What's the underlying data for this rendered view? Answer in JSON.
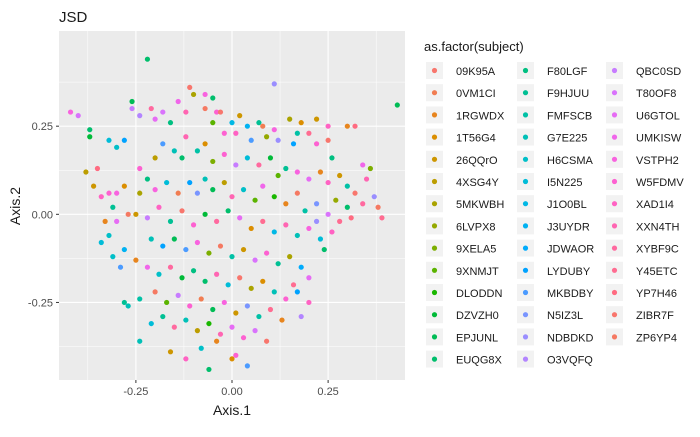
{
  "chart_data": {
    "type": "scatter",
    "title": "JSD",
    "xlabel": "Axis.1",
    "ylabel": "Axis.2",
    "xlim": [
      -0.45,
      0.45
    ],
    "ylim": [
      -0.47,
      0.52
    ],
    "xticks": [
      -0.25,
      0.0,
      0.25
    ],
    "xtick_labels": [
      "-0.25",
      "0.00",
      "0.25"
    ],
    "yticks": [
      -0.25,
      0.0,
      0.25
    ],
    "ytick_labels": [
      "-0.25",
      "0.00",
      "0.25"
    ],
    "grid": true,
    "legend_title": "as.factor(subject)",
    "legend_position": "right",
    "subjects": [
      "09K95A",
      "0VM1CI",
      "1RGWDX",
      "1T56G4",
      "26QQrO",
      "4XSG4Y",
      "5MKWBH",
      "6LVPX8",
      "9XELA5",
      "9XNMJT",
      "DLODDN",
      "DZVZH0",
      "EPJUNL",
      "EUQG8X",
      "F80LGF",
      "F9HJUU",
      "FMFSCB",
      "G7E225",
      "H6CSMA",
      "I5N225",
      "J1O0BL",
      "J3UYDR",
      "JDWAOR",
      "LYDUBY",
      "MKBDBY",
      "N5IZ3L",
      "NDBDKD",
      "O3VQFQ",
      "QBC0SD",
      "T80OF8",
      "U6GTOL",
      "UMKISW",
      "VSTPH2",
      "W5FDMV",
      "XAD1I4",
      "XXN4TH",
      "XYBF9C",
      "Y45ETC",
      "YP7H46",
      "ZIBR7F",
      "ZP6YP4"
    ],
    "colors": [
      "#F8766D",
      "#F17D52",
      "#E7851E",
      "#DB8E00",
      "#CD9600",
      "#BC9D00",
      "#AAA300",
      "#95A900",
      "#7CAE00",
      "#5BB300",
      "#1AB700",
      "#00BA38",
      "#00BC55",
      "#00BE6C",
      "#00BF81",
      "#00C094",
      "#00C1A6",
      "#00C0B7",
      "#00BFC8",
      "#00BCD8",
      "#00B8E5",
      "#00B2F2",
      "#00ABFC",
      "#00A2FF",
      "#4B9BFF",
      "#7995FF",
      "#9A8EFF",
      "#B385FF",
      "#C77CFF",
      "#D973FC",
      "#E66CF4",
      "#F066EA",
      "#F863DF",
      "#FD61D1",
      "#FF62C3",
      "#FF65B2",
      "#FF699F",
      "#FF6C91",
      "#FF6B81",
      "#F8766D",
      "#F57962"
    ],
    "points": [
      {
        "x": -0.22,
        "y": 0.44,
        "s": "EUQG8X"
      },
      {
        "x": 0.11,
        "y": 0.37,
        "s": "NDBDKD"
      },
      {
        "x": 0.43,
        "y": 0.31,
        "s": "EPJUNL"
      },
      {
        "x": -0.42,
        "y": 0.29,
        "s": "VSTPH2"
      },
      {
        "x": -0.4,
        "y": 0.28,
        "s": "T80OF8"
      },
      {
        "x": -0.37,
        "y": 0.24,
        "s": "EUQG8X"
      },
      {
        "x": -0.37,
        "y": 0.22,
        "s": "DZVZH0"
      },
      {
        "x": -0.32,
        "y": 0.21,
        "s": "I5N225"
      },
      {
        "x": -0.28,
        "y": 0.21,
        "s": "LYDUBY"
      },
      {
        "x": -0.3,
        "y": 0.19,
        "s": "H6CSMA"
      },
      {
        "x": -0.38,
        "y": 0.12,
        "s": "4XSG4Y"
      },
      {
        "x": -0.35,
        "y": 0.13,
        "s": "YP7H46"
      },
      {
        "x": -0.36,
        "y": 0.08,
        "s": "26QQrO"
      },
      {
        "x": -0.34,
        "y": 0.05,
        "s": "XAD1I4"
      },
      {
        "x": -0.32,
        "y": 0.06,
        "s": "W5FDMV"
      },
      {
        "x": -0.3,
        "y": 0.06,
        "s": "VSTPH2"
      },
      {
        "x": -0.28,
        "y": 0.08,
        "s": "1T56G4"
      },
      {
        "x": -0.31,
        "y": 0.02,
        "s": "F9HJUU"
      },
      {
        "x": -0.33,
        "y": -0.02,
        "s": "1RGWDX"
      },
      {
        "x": -0.3,
        "y": -0.02,
        "s": "U6GTOL"
      },
      {
        "x": -0.27,
        "y": 0.0,
        "s": "ZP6YP4"
      },
      {
        "x": -0.32,
        "y": -0.06,
        "s": "H6CSMA"
      },
      {
        "x": -0.34,
        "y": -0.08,
        "s": "I5N225"
      },
      {
        "x": -0.28,
        "y": -0.1,
        "s": "J3UYDR"
      },
      {
        "x": -0.31,
        "y": -0.12,
        "s": "H6CSMA"
      },
      {
        "x": -0.29,
        "y": -0.15,
        "s": "MKBDBY"
      },
      {
        "x": -0.28,
        "y": -0.25,
        "s": "F9HJUU"
      },
      {
        "x": -0.27,
        "y": -0.26,
        "s": "G7E225"
      },
      {
        "x": -0.24,
        "y": -0.24,
        "s": "FMFSCB"
      },
      {
        "x": -0.26,
        "y": 0.32,
        "s": "EPJUNL"
      },
      {
        "x": -0.26,
        "y": 0.3,
        "s": "QBC0SD"
      },
      {
        "x": -0.24,
        "y": 0.28,
        "s": "O3VQFQ"
      },
      {
        "x": -0.21,
        "y": 0.3,
        "s": "XYBF9C"
      },
      {
        "x": -0.18,
        "y": 0.29,
        "s": "T80OF8"
      },
      {
        "x": -0.2,
        "y": 0.27,
        "s": "U6GTOL"
      },
      {
        "x": -0.16,
        "y": 0.26,
        "s": "F80LGF"
      },
      {
        "x": -0.14,
        "y": 0.32,
        "s": "UMKISW"
      },
      {
        "x": -0.12,
        "y": 0.29,
        "s": "XXN4TH"
      },
      {
        "x": -0.1,
        "y": 0.34,
        "s": "5MKWBH"
      },
      {
        "x": -0.11,
        "y": 0.36,
        "s": "09K95A"
      },
      {
        "x": -0.07,
        "y": 0.34,
        "s": "VSTPH2"
      },
      {
        "x": -0.05,
        "y": 0.33,
        "s": "EUQG8X"
      },
      {
        "x": -0.07,
        "y": 0.3,
        "s": "ZP6YP4"
      },
      {
        "x": -0.04,
        "y": 0.29,
        "s": "W5FDMV"
      },
      {
        "x": -0.05,
        "y": 0.26,
        "s": "9XNMJT"
      },
      {
        "x": -0.03,
        "y": 0.29,
        "s": "ZIBR7F"
      },
      {
        "x": 0.0,
        "y": 0.26,
        "s": "J1O0BL"
      },
      {
        "x": 0.02,
        "y": 0.28,
        "s": "26QQrO"
      },
      {
        "x": -0.02,
        "y": 0.23,
        "s": "W5FDMV"
      },
      {
        "x": 0.01,
        "y": 0.23,
        "s": "XAD1I4"
      },
      {
        "x": 0.04,
        "y": 0.25,
        "s": "J3UYDR"
      },
      {
        "x": 0.07,
        "y": 0.26,
        "s": "F9HJUU"
      },
      {
        "x": 0.08,
        "y": 0.25,
        "s": "0VM1CI"
      },
      {
        "x": 0.05,
        "y": 0.21,
        "s": "MKBDBY"
      },
      {
        "x": 0.09,
        "y": 0.22,
        "s": "6LVPX8"
      },
      {
        "x": 0.11,
        "y": 0.24,
        "s": "VSTPH2"
      },
      {
        "x": 0.12,
        "y": 0.21,
        "s": "NDBDKD"
      },
      {
        "x": 0.15,
        "y": 0.27,
        "s": "5MKWBH"
      },
      {
        "x": 0.16,
        "y": 0.2,
        "s": "LYDUBY"
      },
      {
        "x": 0.17,
        "y": 0.23,
        "s": "FMFSCB"
      },
      {
        "x": 0.2,
        "y": 0.23,
        "s": "Y45ETC"
      },
      {
        "x": 0.18,
        "y": 0.26,
        "s": "1T56G4"
      },
      {
        "x": 0.22,
        "y": 0.27,
        "s": "26QQrO"
      },
      {
        "x": 0.25,
        "y": 0.25,
        "s": "XAD1I4"
      },
      {
        "x": 0.25,
        "y": 0.21,
        "s": "ZIBR7F"
      },
      {
        "x": 0.26,
        "y": 0.16,
        "s": "F80LGF"
      },
      {
        "x": 0.3,
        "y": 0.25,
        "s": "1RGWDX"
      },
      {
        "x": 0.32,
        "y": 0.25,
        "s": "YP7H46"
      },
      {
        "x": 0.22,
        "y": 0.2,
        "s": "W5FDMV"
      },
      {
        "x": 0.34,
        "y": 0.14,
        "s": "UMKISW"
      },
      {
        "x": 0.36,
        "y": 0.13,
        "s": "9XELA5"
      },
      {
        "x": 0.35,
        "y": 0.1,
        "s": "XXN4TH"
      },
      {
        "x": 0.37,
        "y": 0.05,
        "s": "NDBDKD"
      },
      {
        "x": 0.38,
        "y": 0.02,
        "s": "ZP6YP4"
      },
      {
        "x": 0.39,
        "y": -0.01,
        "s": "Y45ETC"
      },
      {
        "x": -0.12,
        "y": 0.22,
        "s": "XXN4TH"
      },
      {
        "x": -0.18,
        "y": 0.2,
        "s": "MKBDBY"
      },
      {
        "x": -0.15,
        "y": 0.18,
        "s": "G7E225"
      },
      {
        "x": -0.2,
        "y": 0.16,
        "s": "4XSG4Y"
      },
      {
        "x": -0.13,
        "y": 0.16,
        "s": "EUQG8X"
      },
      {
        "x": -0.09,
        "y": 0.18,
        "s": "FMFSCB"
      },
      {
        "x": -0.07,
        "y": 0.2,
        "s": "1T56G4"
      },
      {
        "x": -0.05,
        "y": 0.15,
        "s": "9XELA5"
      },
      {
        "x": -0.02,
        "y": 0.17,
        "s": "W5FDMV"
      },
      {
        "x": 0.01,
        "y": 0.14,
        "s": "QBC0SD"
      },
      {
        "x": 0.04,
        "y": 0.16,
        "s": "I5N225"
      },
      {
        "x": 0.07,
        "y": 0.14,
        "s": "XYBF9C"
      },
      {
        "x": 0.1,
        "y": 0.16,
        "s": "DZVZH0"
      },
      {
        "x": 0.12,
        "y": 0.11,
        "s": "9XNMJT"
      },
      {
        "x": 0.14,
        "y": 0.13,
        "s": "F9HJUU"
      },
      {
        "x": 0.17,
        "y": 0.12,
        "s": "VSTPH2"
      },
      {
        "x": 0.2,
        "y": 0.1,
        "s": "U6GTOL"
      },
      {
        "x": 0.23,
        "y": 0.12,
        "s": "1RGWDX"
      },
      {
        "x": 0.25,
        "y": 0.09,
        "s": "XAD1I4"
      },
      {
        "x": 0.28,
        "y": 0.11,
        "s": "26QQrO"
      },
      {
        "x": 0.3,
        "y": 0.08,
        "s": "FMFSCB"
      },
      {
        "x": 0.32,
        "y": 0.06,
        "s": "ZIBR7F"
      },
      {
        "x": 0.34,
        "y": 0.03,
        "s": "XYBF9C"
      },
      {
        "x": 0.3,
        "y": 0.02,
        "s": "EUQG8X"
      },
      {
        "x": 0.27,
        "y": 0.04,
        "s": "6LVPX8"
      },
      {
        "x": 0.25,
        "y": 0.0,
        "s": "T80OF8"
      },
      {
        "x": 0.22,
        "y": 0.03,
        "s": "N5IZ3L"
      },
      {
        "x": 0.28,
        "y": -0.02,
        "s": "Y45ETC"
      },
      {
        "x": 0.31,
        "y": -0.01,
        "s": "YP7H46"
      },
      {
        "x": -0.24,
        "y": 0.13,
        "s": "W5FDMV"
      },
      {
        "x": -0.22,
        "y": 0.1,
        "s": "F80LGF"
      },
      {
        "x": -0.2,
        "y": 0.07,
        "s": "VSTPH2"
      },
      {
        "x": -0.24,
        "y": 0.06,
        "s": "5MKWBH"
      },
      {
        "x": -0.17,
        "y": 0.09,
        "s": "I5N225"
      },
      {
        "x": -0.14,
        "y": 0.06,
        "s": "0VM1CI"
      },
      {
        "x": -0.11,
        "y": 0.09,
        "s": "LYDUBY"
      },
      {
        "x": -0.09,
        "y": 0.06,
        "s": "N5IZ3L"
      },
      {
        "x": -0.07,
        "y": 0.1,
        "s": "G7E225"
      },
      {
        "x": -0.05,
        "y": 0.07,
        "s": "EPJUNL"
      },
      {
        "x": -0.02,
        "y": 0.09,
        "s": "4XSG4Y"
      },
      {
        "x": 0.0,
        "y": 0.05,
        "s": "XXN4TH"
      },
      {
        "x": 0.03,
        "y": 0.07,
        "s": "H6CSMA"
      },
      {
        "x": 0.06,
        "y": 0.04,
        "s": "9XNMJT"
      },
      {
        "x": 0.08,
        "y": 0.08,
        "s": "UMKISW"
      },
      {
        "x": 0.11,
        "y": 0.05,
        "s": "DLODDN"
      },
      {
        "x": 0.14,
        "y": 0.03,
        "s": "1RGWDX"
      },
      {
        "x": 0.17,
        "y": 0.06,
        "s": "ZP6YP4"
      },
      {
        "x": 0.19,
        "y": 0.01,
        "s": "FMFSCB"
      },
      {
        "x": 0.22,
        "y": -0.02,
        "s": "NDBDKD"
      },
      {
        "x": -0.25,
        "y": 0.0,
        "s": "26QQrO"
      },
      {
        "x": -0.22,
        "y": -0.01,
        "s": "QBC0SD"
      },
      {
        "x": -0.19,
        "y": 0.02,
        "s": "XAD1I4"
      },
      {
        "x": -0.16,
        "y": -0.02,
        "s": "F9HJUU"
      },
      {
        "x": -0.13,
        "y": 0.01,
        "s": "ZIBR7F"
      },
      {
        "x": -0.1,
        "y": -0.03,
        "s": "W5FDMV"
      },
      {
        "x": -0.07,
        "y": 0.0,
        "s": "DZVZH0"
      },
      {
        "x": -0.04,
        "y": -0.02,
        "s": "XYBF9C"
      },
      {
        "x": -0.01,
        "y": 0.01,
        "s": "EUQG8X"
      },
      {
        "x": 0.02,
        "y": -0.01,
        "s": "U6GTOL"
      },
      {
        "x": 0.05,
        "y": -0.04,
        "s": "1T56G4"
      },
      {
        "x": 0.08,
        "y": -0.02,
        "s": "Y45ETC"
      },
      {
        "x": 0.11,
        "y": -0.05,
        "s": "J1O0BL"
      },
      {
        "x": 0.14,
        "y": -0.03,
        "s": "XXN4TH"
      },
      {
        "x": 0.17,
        "y": -0.06,
        "s": "G7E225"
      },
      {
        "x": 0.2,
        "y": -0.04,
        "s": "VSTPH2"
      },
      {
        "x": 0.23,
        "y": -0.07,
        "s": "I5N225"
      },
      {
        "x": 0.26,
        "y": -0.05,
        "s": "XAD1I4"
      },
      {
        "x": 0.24,
        "y": -0.1,
        "s": "EUQG8X"
      },
      {
        "x": -0.21,
        "y": -0.07,
        "s": "G7E225"
      },
      {
        "x": -0.18,
        "y": -0.09,
        "s": "LYDUBY"
      },
      {
        "x": -0.15,
        "y": -0.07,
        "s": "EPJUNL"
      },
      {
        "x": -0.12,
        "y": -0.1,
        "s": "MKBDBY"
      },
      {
        "x": -0.09,
        "y": -0.08,
        "s": "VSTPH2"
      },
      {
        "x": -0.06,
        "y": -0.11,
        "s": "9XELA5"
      },
      {
        "x": -0.03,
        "y": -0.09,
        "s": "ZP6YP4"
      },
      {
        "x": 0.0,
        "y": -0.12,
        "s": "FMFSCB"
      },
      {
        "x": 0.03,
        "y": -0.1,
        "s": "26QQrO"
      },
      {
        "x": 0.06,
        "y": -0.13,
        "s": "T80OF8"
      },
      {
        "x": 0.09,
        "y": -0.11,
        "s": "W5FDMV"
      },
      {
        "x": 0.12,
        "y": -0.14,
        "s": "F9HJUU"
      },
      {
        "x": 0.15,
        "y": -0.12,
        "s": "5MKWBH"
      },
      {
        "x": 0.18,
        "y": -0.15,
        "s": "JDWAOR"
      },
      {
        "x": 0.16,
        "y": -0.2,
        "s": "Y45ETC"
      },
      {
        "x": 0.2,
        "y": -0.18,
        "s": "U6GTOL"
      },
      {
        "x": -0.25,
        "y": -0.13,
        "s": "1RGWDX"
      },
      {
        "x": -0.22,
        "y": -0.15,
        "s": "UMKISW"
      },
      {
        "x": -0.19,
        "y": -0.17,
        "s": "H6CSMA"
      },
      {
        "x": -0.16,
        "y": -0.15,
        "s": "XYBF9C"
      },
      {
        "x": -0.13,
        "y": -0.18,
        "s": "DZVZH0"
      },
      {
        "x": -0.1,
        "y": -0.16,
        "s": "F80LGF"
      },
      {
        "x": -0.07,
        "y": -0.19,
        "s": "EUQG8X"
      },
      {
        "x": -0.04,
        "y": -0.17,
        "s": "XXN4TH"
      },
      {
        "x": -0.01,
        "y": -0.2,
        "s": "I5N225"
      },
      {
        "x": 0.02,
        "y": -0.18,
        "s": "ZIBR7F"
      },
      {
        "x": 0.05,
        "y": -0.21,
        "s": "5MKWBH"
      },
      {
        "x": 0.08,
        "y": -0.19,
        "s": "1T56G4"
      },
      {
        "x": 0.11,
        "y": -0.22,
        "s": "G7E225"
      },
      {
        "x": 0.14,
        "y": -0.24,
        "s": "W5FDMV"
      },
      {
        "x": 0.17,
        "y": -0.22,
        "s": "LYDUBY"
      },
      {
        "x": 0.2,
        "y": -0.25,
        "s": "XAD1I4"
      },
      {
        "x": 0.18,
        "y": -0.29,
        "s": "O3VQFQ"
      },
      {
        "x": -0.2,
        "y": -0.22,
        "s": "ZP6YP4"
      },
      {
        "x": -0.17,
        "y": -0.25,
        "s": "9XNMJT"
      },
      {
        "x": -0.14,
        "y": -0.23,
        "s": "QBC0SD"
      },
      {
        "x": -0.11,
        "y": -0.26,
        "s": "W5FDMV"
      },
      {
        "x": -0.08,
        "y": -0.24,
        "s": "0VM1CI"
      },
      {
        "x": -0.05,
        "y": -0.27,
        "s": "EPJUNL"
      },
      {
        "x": -0.02,
        "y": -0.25,
        "s": "VSTPH2"
      },
      {
        "x": 0.01,
        "y": -0.28,
        "s": "26QQrO"
      },
      {
        "x": 0.04,
        "y": -0.26,
        "s": "N5IZ3L"
      },
      {
        "x": 0.07,
        "y": -0.29,
        "s": "FMFSCB"
      },
      {
        "x": 0.1,
        "y": -0.27,
        "s": "Y45ETC"
      },
      {
        "x": 0.13,
        "y": -0.3,
        "s": "1RGWDX"
      },
      {
        "x": -0.21,
        "y": -0.31,
        "s": "I5N225"
      },
      {
        "x": -0.18,
        "y": -0.29,
        "s": "F9HJUU"
      },
      {
        "x": -0.15,
        "y": -0.32,
        "s": "XYBF9C"
      },
      {
        "x": -0.12,
        "y": -0.3,
        "s": "G7E225"
      },
      {
        "x": -0.09,
        "y": -0.33,
        "s": "4XSG4Y"
      },
      {
        "x": -0.06,
        "y": -0.31,
        "s": "DLODDN"
      },
      {
        "x": -0.03,
        "y": -0.34,
        "s": "XXN4TH"
      },
      {
        "x": 0.0,
        "y": -0.32,
        "s": "U6GTOL"
      },
      {
        "x": 0.03,
        "y": -0.35,
        "s": "W5FDMV"
      },
      {
        "x": 0.06,
        "y": -0.33,
        "s": "T80OF8"
      },
      {
        "x": 0.09,
        "y": -0.36,
        "s": "ZIBR7F"
      },
      {
        "x": -0.24,
        "y": -0.36,
        "s": "G7E225"
      },
      {
        "x": -0.16,
        "y": -0.39,
        "s": "26QQrO"
      },
      {
        "x": -0.12,
        "y": -0.41,
        "s": "XAD1I4"
      },
      {
        "x": -0.08,
        "y": -0.38,
        "s": "H6CSMA"
      },
      {
        "x": -0.06,
        "y": -0.44,
        "s": "EUQG8X"
      },
      {
        "x": 0.0,
        "y": -0.41,
        "s": "1T56G4"
      },
      {
        "x": 0.01,
        "y": -0.4,
        "s": "W5FDMV"
      },
      {
        "x": 0.04,
        "y": -0.43,
        "s": "MKBDBY"
      },
      {
        "x": -0.04,
        "y": -0.36,
        "s": "1RGWDX"
      }
    ]
  }
}
